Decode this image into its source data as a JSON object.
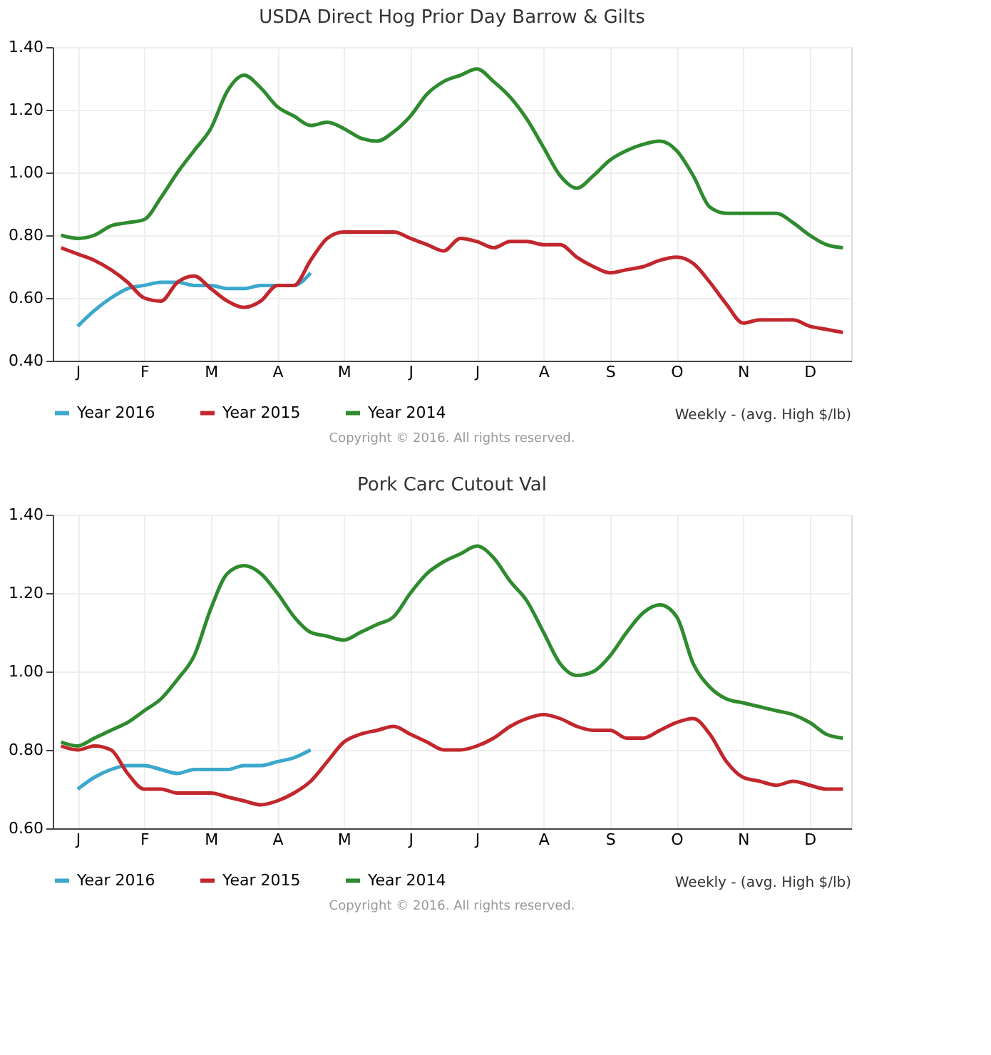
{
  "chart_data": [
    {
      "type": "line",
      "title": "USDA Direct Hog Prior Day Barrow & Gilts",
      "ylim": [
        0.4,
        1.4
      ],
      "categories": [
        null,
        "J",
        null,
        null,
        null,
        "F",
        null,
        null,
        null,
        "M",
        null,
        null,
        null,
        "A",
        null,
        null,
        null,
        "M",
        null,
        null,
        null,
        "J",
        null,
        null,
        null,
        "J",
        null,
        null,
        null,
        "A",
        null,
        null,
        null,
        "S",
        null,
        null,
        null,
        "O",
        null,
        null,
        null,
        "N",
        null,
        null,
        null,
        "D",
        null,
        null
      ],
      "yticks": [
        {
          "value": 0.4,
          "label": "0.40"
        },
        {
          "value": 0.6,
          "label": "0.60"
        },
        {
          "value": 0.8,
          "label": "0.80"
        },
        {
          "value": 1.0,
          "label": "1.00"
        },
        {
          "value": 1.2,
          "label": "1.20"
        },
        {
          "value": 1.4,
          "label": "1.40"
        }
      ],
      "grid": true,
      "legend": "bottom",
      "marker": "none",
      "line_style": "solid",
      "annotations": [
        "Weekly - (avg. High $/lb)",
        "Copyright © 2016. All rights reserved."
      ],
      "series": [
        {
          "name": "Year 2016",
          "color": "#3ca8cc",
          "values": [
            null,
            0.51,
            0.56,
            0.6,
            0.63,
            0.64,
            0.65,
            0.65,
            0.64,
            0.64,
            0.63,
            0.63,
            0.64,
            0.64,
            0.64,
            0.68,
            null,
            null,
            null,
            null,
            null,
            null,
            null,
            null,
            null,
            null,
            null,
            null,
            null,
            null,
            null,
            null,
            null,
            null,
            null,
            null,
            null,
            null,
            null,
            null,
            null,
            null,
            null,
            null,
            null,
            null,
            null,
            null
          ]
        },
        {
          "name": "Year 2015",
          "color": "#c1272d",
          "values": [
            0.76,
            0.74,
            0.72,
            0.69,
            0.65,
            0.6,
            0.59,
            0.65,
            0.67,
            0.63,
            0.59,
            0.57,
            0.59,
            0.64,
            0.64,
            0.72,
            0.79,
            0.81,
            0.81,
            0.81,
            0.81,
            0.79,
            0.77,
            0.75,
            0.79,
            0.78,
            0.76,
            0.78,
            0.78,
            0.77,
            0.77,
            0.73,
            0.7,
            0.68,
            0.69,
            0.7,
            0.72,
            0.73,
            0.71,
            0.65,
            0.58,
            0.52,
            0.53,
            0.53,
            0.53,
            0.51,
            0.5,
            0.49
          ]
        },
        {
          "name": "Year 2014",
          "color": "#2e8b2e",
          "values": [
            0.8,
            0.79,
            0.8,
            0.83,
            0.84,
            0.85,
            0.92,
            1.0,
            1.07,
            1.14,
            1.26,
            1.31,
            1.27,
            1.21,
            1.18,
            1.15,
            1.16,
            1.14,
            1.11,
            1.1,
            1.13,
            1.18,
            1.25,
            1.29,
            1.31,
            1.33,
            1.29,
            1.24,
            1.17,
            1.08,
            0.99,
            0.95,
            0.99,
            1.04,
            1.07,
            1.09,
            1.1,
            1.07,
            0.99,
            0.89,
            0.87,
            0.87,
            0.87,
            0.87,
            0.84,
            0.8,
            0.77,
            0.76
          ]
        }
      ]
    },
    {
      "type": "line",
      "title": "Pork Carc Cutout Val",
      "ylim": [
        0.6,
        1.4
      ],
      "categories": [
        null,
        "J",
        null,
        null,
        null,
        "F",
        null,
        null,
        null,
        "M",
        null,
        null,
        null,
        "A",
        null,
        null,
        null,
        "M",
        null,
        null,
        null,
        "J",
        null,
        null,
        null,
        "J",
        null,
        null,
        null,
        "A",
        null,
        null,
        null,
        "S",
        null,
        null,
        null,
        "O",
        null,
        null,
        null,
        "N",
        null,
        null,
        null,
        "D",
        null,
        null
      ],
      "yticks": [
        {
          "value": 0.6,
          "label": "0.60"
        },
        {
          "value": 0.8,
          "label": "0.80"
        },
        {
          "value": 1.0,
          "label": "1.00"
        },
        {
          "value": 1.2,
          "label": "1.20"
        },
        {
          "value": 1.4,
          "label": "1.40"
        }
      ],
      "grid": true,
      "legend": "bottom",
      "marker": "none",
      "line_style": "solid",
      "annotations": [
        "Weekly - (avg. High $/lb)",
        "Copyright © 2016. All rights reserved."
      ],
      "series": [
        {
          "name": "Year 2016",
          "color": "#3ca8cc",
          "values": [
            null,
            0.7,
            0.73,
            0.75,
            0.76,
            0.76,
            0.75,
            0.74,
            0.75,
            0.75,
            0.75,
            0.76,
            0.76,
            0.77,
            0.78,
            0.8,
            null,
            null,
            null,
            null,
            null,
            null,
            null,
            null,
            null,
            null,
            null,
            null,
            null,
            null,
            null,
            null,
            null,
            null,
            null,
            null,
            null,
            null,
            null,
            null,
            null,
            null,
            null,
            null,
            null,
            null,
            null,
            null
          ]
        },
        {
          "name": "Year 2015",
          "color": "#c1272d",
          "values": [
            0.81,
            0.8,
            0.81,
            0.8,
            0.74,
            0.7,
            0.7,
            0.69,
            0.69,
            0.69,
            0.68,
            0.67,
            0.66,
            0.67,
            0.69,
            0.72,
            0.77,
            0.82,
            0.84,
            0.85,
            0.86,
            0.84,
            0.82,
            0.8,
            0.8,
            0.81,
            0.83,
            0.86,
            0.88,
            0.89,
            0.88,
            0.86,
            0.85,
            0.85,
            0.83,
            0.83,
            0.85,
            0.87,
            0.88,
            0.84,
            0.77,
            0.73,
            0.72,
            0.71,
            0.72,
            0.71,
            0.7,
            0.7
          ]
        },
        {
          "name": "Year 2014",
          "color": "#2e8b2e",
          "values": [
            0.82,
            0.81,
            0.83,
            0.85,
            0.87,
            0.9,
            0.93,
            0.98,
            1.04,
            1.16,
            1.25,
            1.27,
            1.25,
            1.2,
            1.14,
            1.1,
            1.09,
            1.08,
            1.1,
            1.12,
            1.14,
            1.2,
            1.25,
            1.28,
            1.3,
            1.32,
            1.29,
            1.23,
            1.18,
            1.1,
            1.02,
            0.99,
            1.0,
            1.04,
            1.1,
            1.15,
            1.17,
            1.14,
            1.02,
            0.96,
            0.93,
            0.92,
            0.91,
            0.9,
            0.89,
            0.87,
            0.84,
            0.83
          ]
        }
      ]
    }
  ]
}
